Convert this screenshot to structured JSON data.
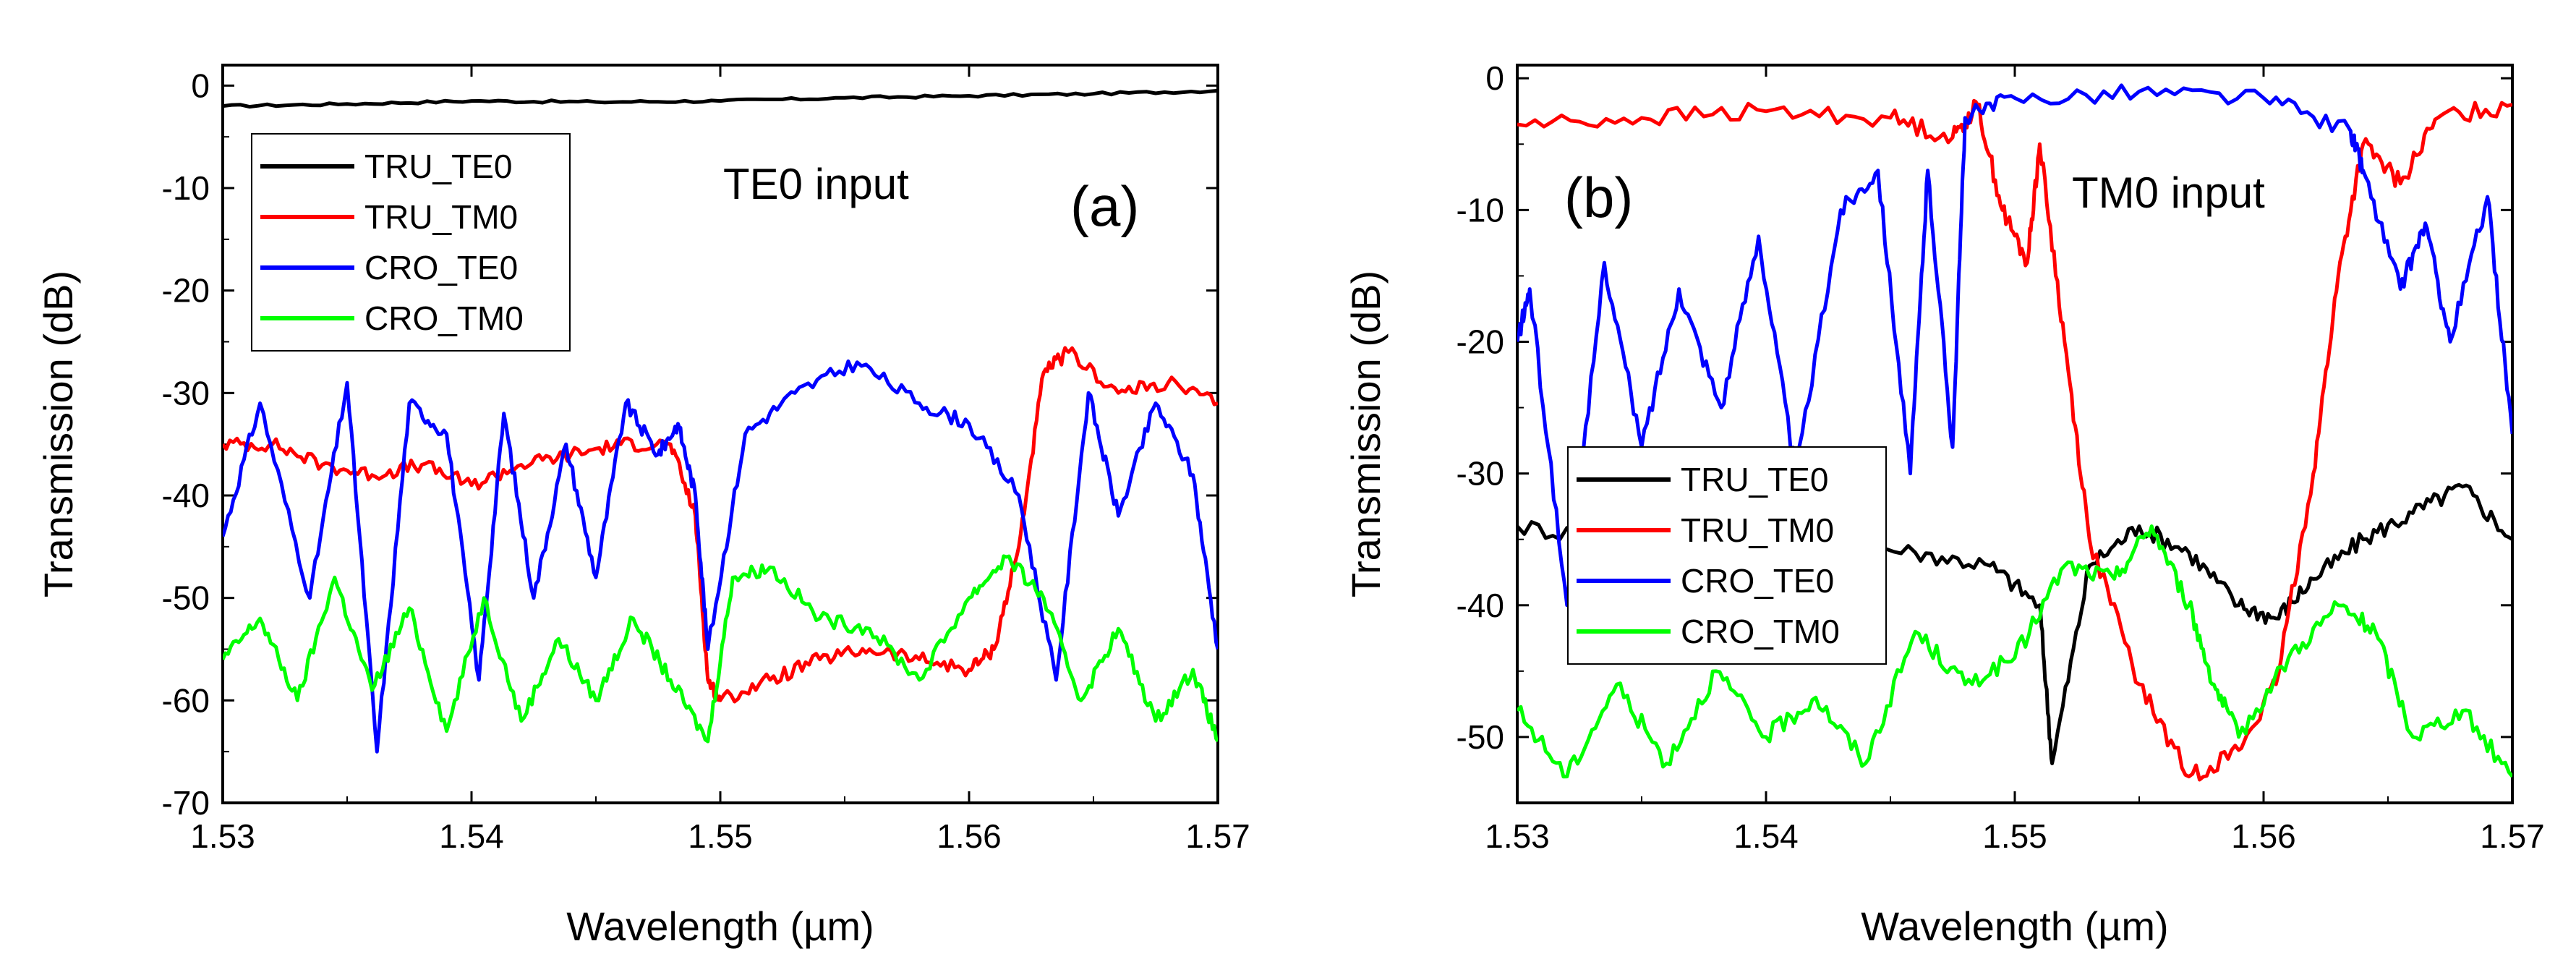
{
  "chart_data": [
    {
      "type": "line",
      "panel_label": "(a)",
      "annotation": "TE0 input",
      "xlabel": "Wavelength (µm)",
      "ylabel": "Transmission (dB)",
      "xlim": [
        1.53,
        1.57
      ],
      "ylim": [
        -70,
        2
      ],
      "x_ticks": [
        1.53,
        1.54,
        1.55,
        1.56,
        1.57
      ],
      "x_tick_labels": [
        "1.53",
        "1.54",
        "1.55",
        "1.56",
        "1.57"
      ],
      "y_ticks": [
        0,
        -10,
        -20,
        -30,
        -40,
        -50,
        -60,
        -70
      ],
      "y_tick_labels": [
        "0",
        "-10",
        "-20",
        "-30",
        "-40",
        "-50",
        "-60",
        "-70"
      ],
      "legend_position": "top-left",
      "series": [
        {
          "name": "TRU_TE0",
          "color": "#000000",
          "x": [
            1.53,
            1.535,
            1.54,
            1.545,
            1.55,
            1.555,
            1.56,
            1.565,
            1.57
          ],
          "values": [
            -2.0,
            -1.8,
            -1.5,
            -1.6,
            -1.5,
            -1.2,
            -1.0,
            -0.8,
            -0.5
          ]
        },
        {
          "name": "TRU_TM0",
          "color": "#ff0000",
          "x": [
            1.53,
            1.532,
            1.534,
            1.536,
            1.538,
            1.54,
            1.542,
            1.544,
            1.546,
            1.548,
            1.549,
            1.5495,
            1.55,
            1.552,
            1.554,
            1.556,
            1.558,
            1.56,
            1.561,
            1.562,
            1.563,
            1.564,
            1.566,
            1.568,
            1.57
          ],
          "values": [
            -35,
            -35,
            -37,
            -38,
            -37,
            -39,
            -37,
            -36,
            -35,
            -35,
            -42,
            -58,
            -60,
            -58,
            -56,
            -55,
            -56,
            -57,
            -55,
            -45,
            -28,
            -26,
            -30,
            -29,
            -31
          ]
        },
        {
          "name": "CRO_TE0",
          "color": "#0000ff",
          "x": [
            1.53,
            1.5315,
            1.5335,
            1.535,
            1.5362,
            1.5375,
            1.539,
            1.5403,
            1.5413,
            1.5425,
            1.5438,
            1.545,
            1.5462,
            1.5475,
            1.5483,
            1.549,
            1.5495,
            1.551,
            1.553,
            1.5555,
            1.558,
            1.56,
            1.562,
            1.5635,
            1.5648,
            1.566,
            1.5675,
            1.569,
            1.57
          ],
          "values": [
            -44,
            -31,
            -50,
            -29,
            -65,
            -31,
            -34,
            -58,
            -32,
            -50,
            -35,
            -48,
            -31,
            -36,
            -33,
            -40,
            -55,
            -34,
            -30,
            -27,
            -31,
            -33,
            -40,
            -58,
            -30,
            -42,
            -31,
            -38,
            -55
          ]
        },
        {
          "name": "CRO_TM0",
          "color": "#00ff00",
          "x": [
            1.53,
            1.5315,
            1.533,
            1.5345,
            1.536,
            1.5375,
            1.539,
            1.5405,
            1.542,
            1.5435,
            1.545,
            1.5465,
            1.548,
            1.5495,
            1.5505,
            1.552,
            1.554,
            1.556,
            1.558,
            1.56,
            1.5615,
            1.563,
            1.5645,
            1.566,
            1.5675,
            1.569,
            1.57
          ],
          "values": [
            -56,
            -52,
            -60,
            -48,
            -59,
            -51,
            -63,
            -50,
            -62,
            -54,
            -60,
            -52,
            -58,
            -64,
            -48,
            -47,
            -52,
            -53,
            -58,
            -50,
            -46,
            -50,
            -60,
            -53,
            -62,
            -57,
            -64
          ]
        }
      ]
    },
    {
      "type": "line",
      "panel_label": "(b)",
      "annotation": "TM0  input",
      "xlabel": "Wavelength (µm)",
      "ylabel": "Transmission (dB)",
      "xlim": [
        1.53,
        1.57
      ],
      "ylim": [
        -55,
        1
      ],
      "x_ticks": [
        1.53,
        1.54,
        1.55,
        1.56,
        1.57
      ],
      "x_tick_labels": [
        "1.53",
        "1.54",
        "1.55",
        "1.56",
        "1.57"
      ],
      "y_ticks": [
        0,
        -10,
        -20,
        -30,
        -40,
        -50
      ],
      "y_tick_labels": [
        "0",
        "-10",
        "-20",
        "-30",
        "-40",
        "-50"
      ],
      "legend_position": "center-left",
      "series": [
        {
          "name": "TRU_TE0",
          "color": "#000000",
          "x": [
            1.53,
            1.534,
            1.538,
            1.542,
            1.546,
            1.549,
            1.551,
            1.5515,
            1.553,
            1.555,
            1.557,
            1.559,
            1.5605,
            1.562,
            1.564,
            1.566,
            1.568,
            1.57
          ],
          "values": [
            -34,
            -35,
            -34,
            -35,
            -36,
            -37,
            -40,
            -52,
            -37,
            -34,
            -36,
            -40,
            -41,
            -38,
            -35,
            -33,
            -31,
            -35
          ]
        },
        {
          "name": "TRU_TM0",
          "color": "#ff0000",
          "x": [
            1.53,
            1.535,
            1.54,
            1.545,
            1.5475,
            1.5485,
            1.5495,
            1.5505,
            1.551,
            1.552,
            1.553,
            1.555,
            1.557,
            1.559,
            1.5605,
            1.562,
            1.563,
            1.564,
            1.5655,
            1.567,
            1.57
          ],
          "values": [
            -3.5,
            -3,
            -2.5,
            -3,
            -4.5,
            -2,
            -10,
            -14,
            -5,
            -20,
            -35,
            -46,
            -53,
            -51,
            -46,
            -30,
            -15,
            -5,
            -8,
            -3,
            -2
          ]
        },
        {
          "name": "CRO_TE0",
          "color": "#0000ff",
          "x": [
            1.53,
            1.5305,
            1.532,
            1.5335,
            1.535,
            1.5365,
            1.5382,
            1.5397,
            1.5412,
            1.543,
            1.5445,
            1.5458,
            1.5465,
            1.5475,
            1.548,
            1.55,
            1.555,
            1.56,
            1.5635,
            1.564,
            1.5655,
            1.5665,
            1.5675,
            1.569,
            1.57
          ],
          "values": [
            -20,
            -16,
            -40,
            -14,
            -28,
            -16,
            -25,
            -12,
            -30,
            -10,
            -7,
            -30,
            -7,
            -28,
            -3,
            -1.5,
            -1,
            -1.5,
            -4,
            -7,
            -16,
            -11,
            -20,
            -9,
            -27
          ]
        },
        {
          "name": "CRO_TM0",
          "color": "#00ff00",
          "x": [
            1.53,
            1.532,
            1.534,
            1.536,
            1.538,
            1.54,
            1.542,
            1.544,
            1.546,
            1.548,
            1.55,
            1.552,
            1.554,
            1.5555,
            1.557,
            1.558,
            1.559,
            1.561,
            1.563,
            1.5645,
            1.566,
            1.568,
            1.57
          ],
          "values": [
            -48,
            -53,
            -46,
            -52,
            -45,
            -50,
            -47,
            -52,
            -42,
            -46,
            -44,
            -37,
            -38,
            -34,
            -40,
            -46,
            -50,
            -44,
            -40,
            -42,
            -50,
            -48,
            -53
          ]
        }
      ]
    }
  ]
}
